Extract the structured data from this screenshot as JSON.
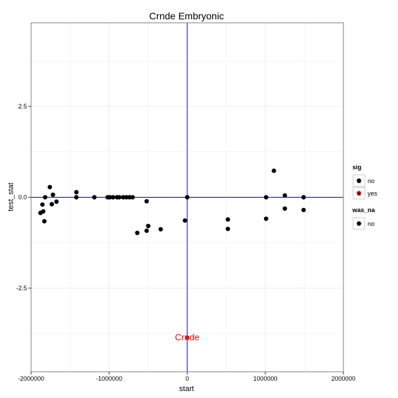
{
  "chart_data": {
    "type": "scatter",
    "title": "Crnde Embryonic",
    "xlabel": "start",
    "ylabel": "test_stat",
    "xlim": [
      -2000000,
      2000000
    ],
    "ylim": [
      -4.8,
      4.8
    ],
    "x_ticks": [
      -2000000,
      -1000000,
      0,
      1000000,
      2000000
    ],
    "x_tick_labels": [
      "-2000000",
      "-1000000",
      "0",
      "1000000",
      "2000000"
    ],
    "y_ticks": [
      -2.5,
      0,
      2.5
    ],
    "y_tick_labels": [
      "-2.5",
      "0.0",
      "2.5"
    ],
    "grid": true,
    "reference_lines": {
      "h": 0,
      "v": 0,
      "color": "#0000cc"
    },
    "colors": {
      "no": "#000000",
      "yes": "#ff0000",
      "grid": "#ececec",
      "panel_border": "#7f7f7f"
    },
    "legend": {
      "placement": "right",
      "groups": [
        {
          "title": "sig",
          "items": [
            {
              "label": "no",
              "color": "#000000",
              "glyph": "a"
            },
            {
              "label": "yes",
              "color": "#ff0000",
              "glyph": "a"
            }
          ]
        },
        {
          "title": "was_na",
          "items": [
            {
              "label": "no",
              "color": "#000000",
              "glyph": ""
            }
          ]
        }
      ]
    },
    "series": [
      {
        "sig": "no",
        "x": [
          -1880000,
          -1855000,
          -1845000,
          -1830000,
          -1820000,
          -1760000,
          -1735000,
          -1720000,
          -1675000,
          -1420000,
          -1420000,
          -1190000,
          -1020000,
          -990000,
          -950000,
          -900000,
          -870000,
          -820000,
          -780000,
          -740000,
          -700000,
          -520000,
          -520000,
          -500000,
          -640000,
          -340000,
          -30000,
          0,
          520000,
          520000,
          1010000,
          1010000,
          1110000,
          1250000,
          1250000,
          1490000,
          1490000
        ],
        "y": [
          -0.43,
          -0.2,
          -0.39,
          -0.66,
          0.0,
          0.28,
          -0.19,
          0.07,
          -0.12,
          0.14,
          0.0,
          0.0,
          0.0,
          0.0,
          0.0,
          0.0,
          0.0,
          0.0,
          0.0,
          0.0,
          0.0,
          -0.11,
          -0.92,
          -0.79,
          -0.98,
          -0.88,
          -0.64,
          0.0,
          -0.61,
          -0.87,
          0.0,
          -0.59,
          0.73,
          0.05,
          -0.31,
          0.0,
          -0.35
        ]
      },
      {
        "sig": "yes",
        "x": [
          0
        ],
        "y": [
          -3.86
        ],
        "labels": [
          "Crnde"
        ]
      }
    ]
  }
}
